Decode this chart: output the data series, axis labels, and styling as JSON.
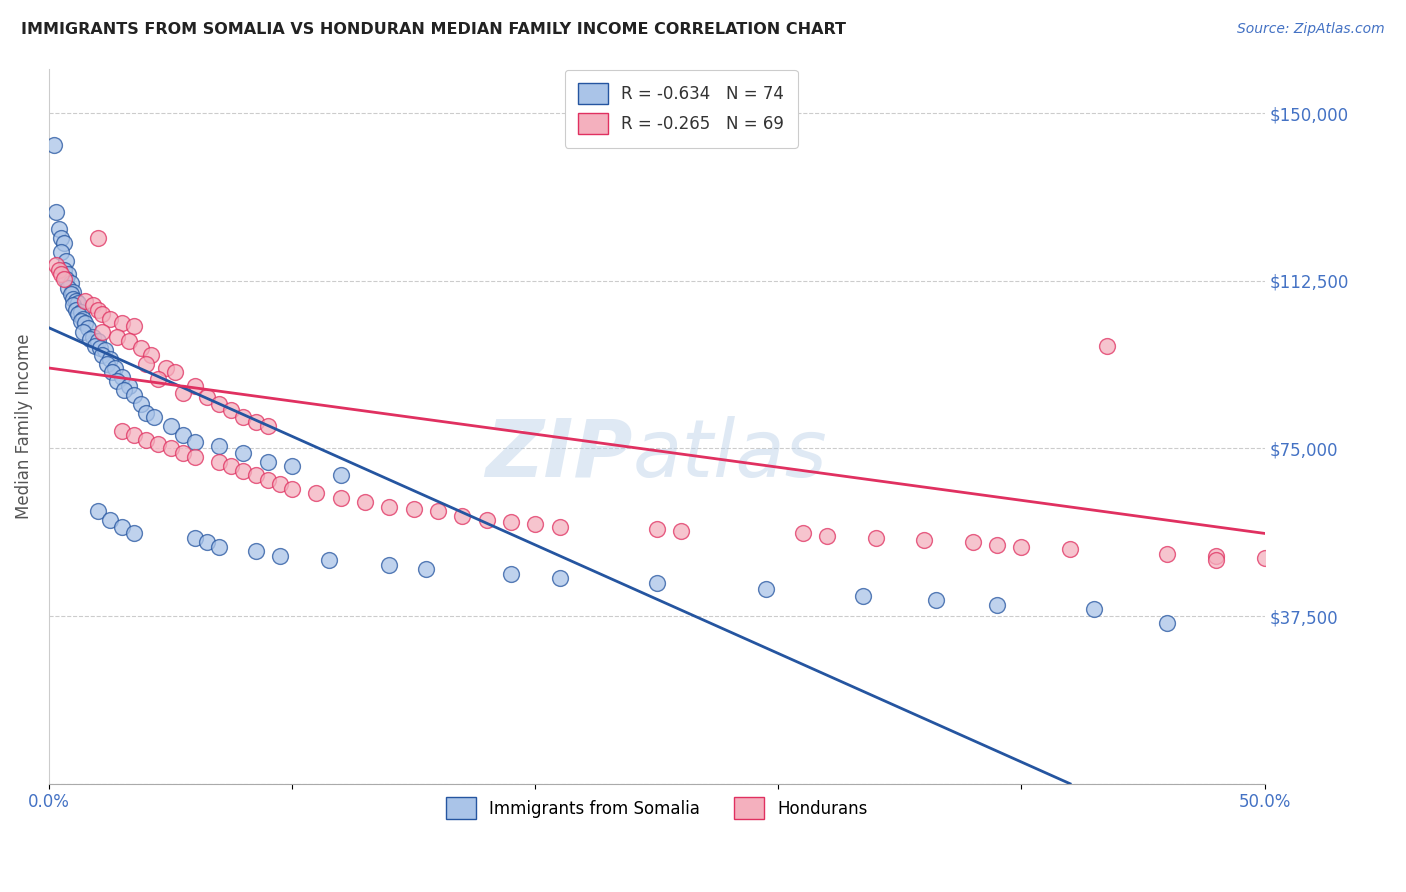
{
  "title": "IMMIGRANTS FROM SOMALIA VS HONDURAN MEDIAN FAMILY INCOME CORRELATION CHART",
  "source": "Source: ZipAtlas.com",
  "ylabel": "Median Family Income",
  "yticks": [
    0,
    37500,
    75000,
    112500,
    150000
  ],
  "ytick_labels": [
    "",
    "$37,500",
    "$75,000",
    "$112,500",
    "$150,000"
  ],
  "xlim": [
    0.0,
    0.5
  ],
  "ylim": [
    0,
    160000
  ],
  "legend_label1": "R = -0.634   N = 74",
  "legend_label2": "R = -0.265   N = 69",
  "legend_label_bottom1": "Immigrants from Somalia",
  "legend_label_bottom2": "Hondurans",
  "color_somalia": "#aac4e8",
  "color_honduras": "#f4b0be",
  "color_somalia_line": "#2555a0",
  "color_honduras_line": "#e03060",
  "background_color": "#ffffff",
  "title_color": "#222222",
  "axis_label_color": "#4472c4",
  "somalia_scatter": [
    [
      0.002,
      143000
    ],
    [
      0.003,
      128000
    ],
    [
      0.004,
      124000
    ],
    [
      0.005,
      122000
    ],
    [
      0.006,
      121000
    ],
    [
      0.005,
      119000
    ],
    [
      0.007,
      117000
    ],
    [
      0.006,
      115000
    ],
    [
      0.008,
      114000
    ],
    [
      0.007,
      113000
    ],
    [
      0.009,
      112000
    ],
    [
      0.008,
      111000
    ],
    [
      0.01,
      110000
    ],
    [
      0.009,
      109500
    ],
    [
      0.01,
      108500
    ],
    [
      0.011,
      108000
    ],
    [
      0.012,
      107500
    ],
    [
      0.01,
      107000
    ],
    [
      0.011,
      106000
    ],
    [
      0.013,
      105500
    ],
    [
      0.012,
      105000
    ],
    [
      0.014,
      104000
    ],
    [
      0.013,
      103500
    ],
    [
      0.015,
      103000
    ],
    [
      0.016,
      102000
    ],
    [
      0.014,
      101000
    ],
    [
      0.018,
      100000
    ],
    [
      0.017,
      99500
    ],
    [
      0.02,
      99000
    ],
    [
      0.019,
      98000
    ],
    [
      0.021,
      97500
    ],
    [
      0.023,
      97000
    ],
    [
      0.022,
      96000
    ],
    [
      0.025,
      95000
    ],
    [
      0.024,
      94000
    ],
    [
      0.027,
      93000
    ],
    [
      0.026,
      92000
    ],
    [
      0.03,
      91000
    ],
    [
      0.028,
      90000
    ],
    [
      0.033,
      89000
    ],
    [
      0.031,
      88000
    ],
    [
      0.035,
      87000
    ],
    [
      0.038,
      85000
    ],
    [
      0.04,
      83000
    ],
    [
      0.043,
      82000
    ],
    [
      0.05,
      80000
    ],
    [
      0.055,
      78000
    ],
    [
      0.06,
      76500
    ],
    [
      0.07,
      75500
    ],
    [
      0.08,
      74000
    ],
    [
      0.09,
      72000
    ],
    [
      0.1,
      71000
    ],
    [
      0.12,
      69000
    ],
    [
      0.02,
      61000
    ],
    [
      0.025,
      59000
    ],
    [
      0.03,
      57500
    ],
    [
      0.035,
      56000
    ],
    [
      0.06,
      55000
    ],
    [
      0.065,
      54000
    ],
    [
      0.07,
      53000
    ],
    [
      0.085,
      52000
    ],
    [
      0.095,
      51000
    ],
    [
      0.115,
      50000
    ],
    [
      0.14,
      49000
    ],
    [
      0.155,
      48000
    ],
    [
      0.19,
      47000
    ],
    [
      0.21,
      46000
    ],
    [
      0.25,
      45000
    ],
    [
      0.295,
      43500
    ],
    [
      0.335,
      42000
    ],
    [
      0.365,
      41000
    ],
    [
      0.39,
      40000
    ],
    [
      0.43,
      39000
    ],
    [
      0.46,
      36000
    ]
  ],
  "honduras_scatter": [
    [
      0.003,
      116000
    ],
    [
      0.004,
      115000
    ],
    [
      0.005,
      114000
    ],
    [
      0.006,
      113000
    ],
    [
      0.02,
      122000
    ],
    [
      0.015,
      108000
    ],
    [
      0.018,
      107000
    ],
    [
      0.02,
      106000
    ],
    [
      0.022,
      105000
    ],
    [
      0.025,
      104000
    ],
    [
      0.03,
      103000
    ],
    [
      0.035,
      102500
    ],
    [
      0.022,
      101000
    ],
    [
      0.028,
      100000
    ],
    [
      0.033,
      99000
    ],
    [
      0.038,
      97500
    ],
    [
      0.042,
      96000
    ],
    [
      0.04,
      94000
    ],
    [
      0.048,
      93000
    ],
    [
      0.052,
      92000
    ],
    [
      0.045,
      90500
    ],
    [
      0.06,
      89000
    ],
    [
      0.055,
      87500
    ],
    [
      0.065,
      86500
    ],
    [
      0.07,
      85000
    ],
    [
      0.075,
      83500
    ],
    [
      0.08,
      82000
    ],
    [
      0.085,
      81000
    ],
    [
      0.09,
      80000
    ],
    [
      0.03,
      79000
    ],
    [
      0.035,
      78000
    ],
    [
      0.04,
      77000
    ],
    [
      0.045,
      76000
    ],
    [
      0.05,
      75000
    ],
    [
      0.055,
      74000
    ],
    [
      0.06,
      73000
    ],
    [
      0.07,
      72000
    ],
    [
      0.075,
      71000
    ],
    [
      0.08,
      70000
    ],
    [
      0.085,
      69000
    ],
    [
      0.09,
      68000
    ],
    [
      0.095,
      67000
    ],
    [
      0.1,
      66000
    ],
    [
      0.11,
      65000
    ],
    [
      0.12,
      64000
    ],
    [
      0.13,
      63000
    ],
    [
      0.14,
      62000
    ],
    [
      0.15,
      61500
    ],
    [
      0.16,
      61000
    ],
    [
      0.17,
      60000
    ],
    [
      0.18,
      59000
    ],
    [
      0.19,
      58500
    ],
    [
      0.2,
      58000
    ],
    [
      0.21,
      57500
    ],
    [
      0.25,
      57000
    ],
    [
      0.26,
      56500
    ],
    [
      0.31,
      56000
    ],
    [
      0.32,
      55500
    ],
    [
      0.34,
      55000
    ],
    [
      0.36,
      54500
    ],
    [
      0.38,
      54000
    ],
    [
      0.39,
      53500
    ],
    [
      0.4,
      53000
    ],
    [
      0.42,
      52500
    ],
    [
      0.435,
      98000
    ],
    [
      0.46,
      51500
    ],
    [
      0.48,
      51000
    ],
    [
      0.5,
      50500
    ],
    [
      0.48,
      50000
    ]
  ],
  "somalia_line_x": [
    0.0,
    0.42
  ],
  "somalia_line_y": [
    102000,
    0
  ],
  "honduras_line_x": [
    0.0,
    0.5
  ],
  "honduras_line_y": [
    93000,
    56000
  ]
}
